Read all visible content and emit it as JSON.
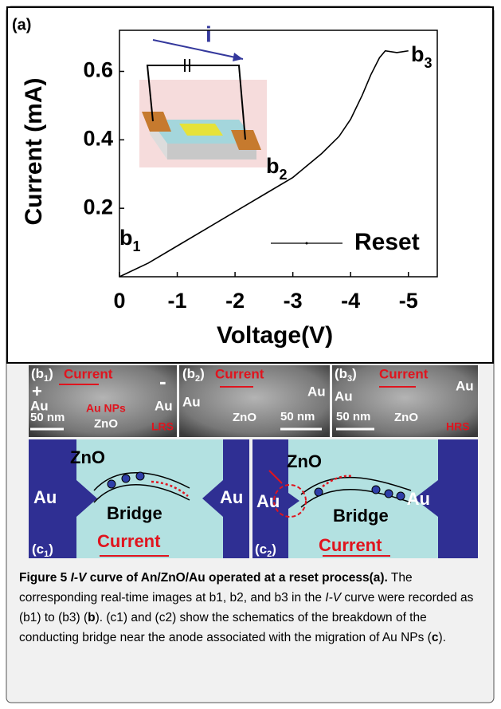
{
  "chart_data": {
    "type": "line",
    "panel_label": "(a)",
    "x_label": "Voltage(V)",
    "y_label": "Current (mA)",
    "x": [
      0,
      -0.5,
      -1,
      -1.5,
      -2,
      -2.5,
      -3,
      -3.5,
      -3.8,
      -4,
      -4.2,
      -4.35,
      -4.5,
      -4.6,
      -4.8,
      -5
    ],
    "series": [
      {
        "name": "Reset",
        "color": "#000000",
        "values": [
          0,
          0.04,
          0.09,
          0.14,
          0.19,
          0.24,
          0.29,
          0.36,
          0.41,
          0.46,
          0.53,
          0.59,
          0.64,
          0.66,
          0.655,
          0.66
        ]
      }
    ],
    "xlim": [
      0,
      -5.5
    ],
    "ylim": [
      0,
      0.72
    ],
    "xticks": [
      0,
      -1,
      -2,
      -3,
      -4,
      -5
    ],
    "yticks": [
      0.2,
      0.4,
      0.6
    ],
    "annotations": [
      {
        "text": "b",
        "sub": "1"
      },
      {
        "text": "b",
        "sub": "2"
      },
      {
        "text": "b",
        "sub": "3"
      }
    ],
    "inset_label": "i"
  },
  "tem_panels": [
    {
      "label": "(b",
      "sub": "1",
      "tail": ")",
      "texts": [
        "Current",
        "+",
        "-",
        "Au",
        "Au",
        "Au NPs",
        "ZnO",
        "50 nm",
        "LRS"
      ]
    },
    {
      "label": "(b",
      "sub": "2",
      "tail": ")",
      "texts": [
        "Current",
        "Au",
        "Au",
        "ZnO",
        "50 nm"
      ]
    },
    {
      "label": "(b",
      "sub": "3",
      "tail": ")",
      "texts": [
        "Current",
        "Au",
        "Au",
        "50 nm",
        "ZnO",
        "HRS"
      ]
    }
  ],
  "schematics": [
    {
      "label": "(c",
      "sub": "1",
      "tail": ")",
      "texts": [
        "ZnO",
        "Au",
        "Au",
        "Bridge",
        "Current"
      ]
    },
    {
      "label": "(c",
      "sub": "2",
      "tail": ")",
      "texts": [
        "ZnO",
        "Au",
        "Au",
        "Bridge",
        "Current"
      ]
    }
  ],
  "caption": [
    {
      "text": "Figure 5 ",
      "style": "bold"
    },
    {
      "text": "I-V",
      "style": "bold-italic"
    },
    {
      "text": " curve of An/ZnO/Au operated at a reset process",
      "style": "bold"
    },
    {
      "text": "(a).",
      "style": "bold"
    },
    {
      "text": " The corresponding real-time images at b1, b2, and b3 in the ",
      "style": "normal"
    },
    {
      "text": "I-V",
      "style": "italic"
    },
    {
      "text": " curve were recorded as (b1) to (b3) (",
      "style": "normal"
    },
    {
      "text": "b",
      "style": "bold"
    },
    {
      "text": "). (c1) and (c2) show the schematics of the breakdown of the conducting bridge near the anode associated with the migration of Au NPs (",
      "style": "normal"
    },
    {
      "text": "c",
      "style": "bold"
    },
    {
      "text": ").",
      "style": "normal"
    }
  ]
}
